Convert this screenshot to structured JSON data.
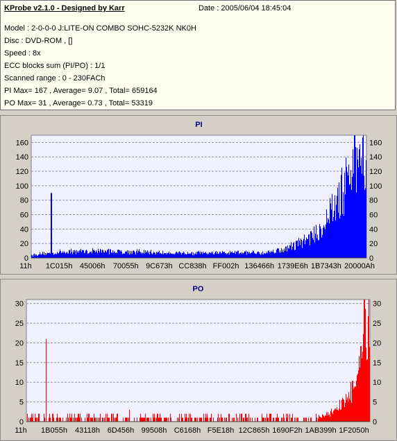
{
  "info": {
    "title": "KProbe v2.1.0 - Designed by Karr",
    "date": "Date : 2005/06/04 18:45:04",
    "model": "Model : 2-0-0-0 J:LITE-ON COMBO SOHC-5232K NK0H",
    "disc": "Disc : DVD-ROM ,  []",
    "speed": "Speed : 8x",
    "ecc": "ECC blocks sum (PI/PO) : 1/1",
    "range": "Scanned range : 0 - 230FACh",
    "pi_stats": "PI Max= 167 , Average= 9.07 , Total= 659164",
    "po_stats": "PO Max= 31 , Average= 0.73 , Total= 53319"
  },
  "chart_data": [
    {
      "type": "bar",
      "title": "PI",
      "color": "#0000ff",
      "ylim": [
        0,
        170
      ],
      "yticks": [
        0,
        20,
        40,
        60,
        80,
        100,
        120,
        140,
        160
      ],
      "xtick_labels": [
        "11h",
        "1C015h",
        "45006h",
        "70055h",
        "9C673h",
        "CC838h",
        "FF002h",
        "136466h",
        "1739E6h",
        "1B7343h",
        "20000Ah"
      ],
      "grid": true,
      "profile": [
        [
          0,
          4
        ],
        [
          0.04,
          6
        ],
        [
          0.1,
          9
        ],
        [
          0.2,
          10
        ],
        [
          0.3,
          9
        ],
        [
          0.4,
          7
        ],
        [
          0.5,
          7
        ],
        [
          0.6,
          7
        ],
        [
          0.7,
          8
        ],
        [
          0.76,
          13
        ],
        [
          0.8,
          22
        ],
        [
          0.85,
          35
        ],
        [
          0.88,
          55
        ],
        [
          0.91,
          80
        ],
        [
          0.94,
          110
        ],
        [
          0.97,
          140
        ],
        [
          1.0,
          167
        ]
      ],
      "spikes": [
        [
          0.059,
          90
        ],
        [
          0.99,
          167
        ]
      ]
    },
    {
      "type": "bar",
      "title": "PO",
      "color": "#ff0000",
      "ylim": [
        0,
        31
      ],
      "yticks": [
        0,
        5,
        10,
        15,
        20,
        25,
        30
      ],
      "xtick_labels": [
        "11h",
        "1B055h",
        "43118h",
        "6D456h",
        "99508h",
        "C6168h",
        "F5E18h",
        "12C865h",
        "1690F2h",
        "1AB399h",
        "1F2050h"
      ],
      "grid": true,
      "profile": [
        [
          0,
          1
        ],
        [
          0.85,
          1
        ],
        [
          0.88,
          2
        ],
        [
          0.91,
          4
        ],
        [
          0.94,
          7
        ],
        [
          0.96,
          10
        ],
        [
          0.98,
          17
        ],
        [
          1.0,
          30
        ]
      ],
      "spikes": [
        [
          0.057,
          21
        ],
        [
          0.3,
          3
        ],
        [
          0.985,
          31
        ]
      ]
    }
  ]
}
